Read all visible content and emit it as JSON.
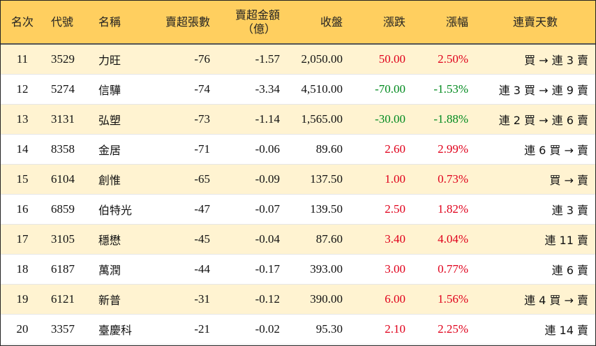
{
  "table": {
    "headers": {
      "rank": "名次",
      "code": "代號",
      "name": "名稱",
      "net_sell_lots": "賣超張數",
      "net_sell_amount_1": "賣超金額",
      "net_sell_amount_2": "（億）",
      "close": "收盤",
      "change": "漲跌",
      "change_pct": "漲幅",
      "streak": "連賣天數"
    },
    "colors": {
      "up": "#e0001b",
      "down": "#008a1e",
      "header_bg": "#ffcf5f",
      "stripe_bg": "#fff3d1"
    },
    "rows": [
      {
        "rank": "11",
        "code": "3529",
        "name": "力旺",
        "net_sell_lots": "-76",
        "net_sell_amount": "-1.57",
        "close": "2,050.00",
        "change": "50.00",
        "change_pct": "2.50%",
        "dir": "up",
        "streak": "買 → 連 3 賣"
      },
      {
        "rank": "12",
        "code": "5274",
        "name": "信驊",
        "net_sell_lots": "-74",
        "net_sell_amount": "-3.34",
        "close": "4,510.00",
        "change": "-70.00",
        "change_pct": "-1.53%",
        "dir": "down",
        "streak": "連 3 買 → 連 9 賣"
      },
      {
        "rank": "13",
        "code": "3131",
        "name": "弘塑",
        "net_sell_lots": "-73",
        "net_sell_amount": "-1.14",
        "close": "1,565.00",
        "change": "-30.00",
        "change_pct": "-1.88%",
        "dir": "down",
        "streak": "連 2 買 → 連 6 賣"
      },
      {
        "rank": "14",
        "code": "8358",
        "name": "金居",
        "net_sell_lots": "-71",
        "net_sell_amount": "-0.06",
        "close": "89.60",
        "change": "2.60",
        "change_pct": "2.99%",
        "dir": "up",
        "streak": "連 6 買 → 賣"
      },
      {
        "rank": "15",
        "code": "6104",
        "name": "創惟",
        "net_sell_lots": "-65",
        "net_sell_amount": "-0.09",
        "close": "137.50",
        "change": "1.00",
        "change_pct": "0.73%",
        "dir": "up",
        "streak": "買 → 賣"
      },
      {
        "rank": "16",
        "code": "6859",
        "name": "伯特光",
        "net_sell_lots": "-47",
        "net_sell_amount": "-0.07",
        "close": "139.50",
        "change": "2.50",
        "change_pct": "1.82%",
        "dir": "up",
        "streak": "連 3 賣"
      },
      {
        "rank": "17",
        "code": "3105",
        "name": "穩懋",
        "net_sell_lots": "-45",
        "net_sell_amount": "-0.04",
        "close": "87.60",
        "change": "3.40",
        "change_pct": "4.04%",
        "dir": "up",
        "streak": "連 11 賣"
      },
      {
        "rank": "18",
        "code": "6187",
        "name": "萬潤",
        "net_sell_lots": "-44",
        "net_sell_amount": "-0.17",
        "close": "393.00",
        "change": "3.00",
        "change_pct": "0.77%",
        "dir": "up",
        "streak": "連 6 賣"
      },
      {
        "rank": "19",
        "code": "6121",
        "name": "新普",
        "net_sell_lots": "-31",
        "net_sell_amount": "-0.12",
        "close": "390.00",
        "change": "6.00",
        "change_pct": "1.56%",
        "dir": "up",
        "streak": "連 4 買 → 賣"
      },
      {
        "rank": "20",
        "code": "3357",
        "name": "臺慶科",
        "net_sell_lots": "-21",
        "net_sell_amount": "-0.02",
        "close": "95.30",
        "change": "2.10",
        "change_pct": "2.25%",
        "dir": "up",
        "streak": "連 14 賣"
      }
    ]
  }
}
